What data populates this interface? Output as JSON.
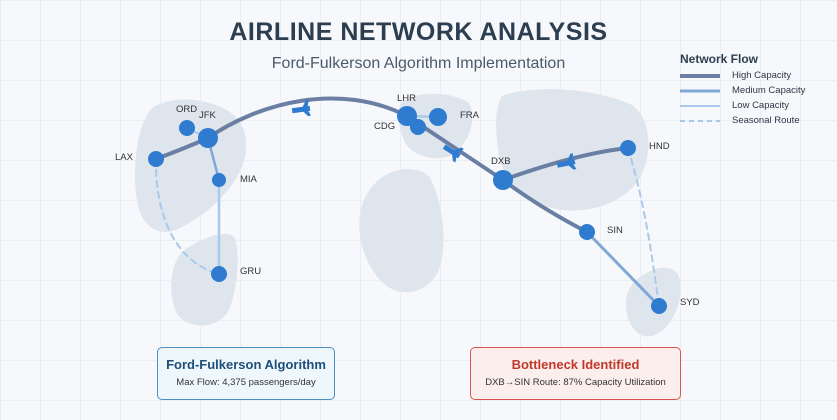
{
  "header": {
    "title": "AIRLINE NETWORK ANALYSIS",
    "subtitle": "Ford-Fulkerson Algorithm Implementation"
  },
  "legend": {
    "title": "Network Flow",
    "items": [
      {
        "label": "High Capacity",
        "style": "high"
      },
      {
        "label": "Medium Capacity",
        "style": "medium"
      },
      {
        "label": "Low Capacity",
        "style": "low"
      },
      {
        "label": "Seasonal Route",
        "style": "seasonal"
      }
    ]
  },
  "colors": {
    "high": "#6a7fa3",
    "medium": "#7fa8d8",
    "low": "#a9c9ea",
    "node": "#2f7bd0",
    "landmass": "#dfe5ec",
    "algo_border": "#4a90c2",
    "bottleneck_border": "#d9534f"
  },
  "airports": {
    "lax": "LAX",
    "ord": "ORD",
    "jfk": "JFK",
    "mia": "MIA",
    "gru": "GRU",
    "lhr": "LHR",
    "cdg": "CDG",
    "fra": "FRA",
    "dxb": "DXB",
    "sin": "SIN",
    "hnd": "HND",
    "syd": "SYD"
  },
  "info_boxes": {
    "algorithm": {
      "title": "Ford-Fulkerson Algorithm",
      "text": "Max Flow: 4,375 passengers/day"
    },
    "bottleneck": {
      "title": "Bottleneck Identified",
      "text": "DXB→SIN Route: 87% Capacity Utilization"
    }
  }
}
